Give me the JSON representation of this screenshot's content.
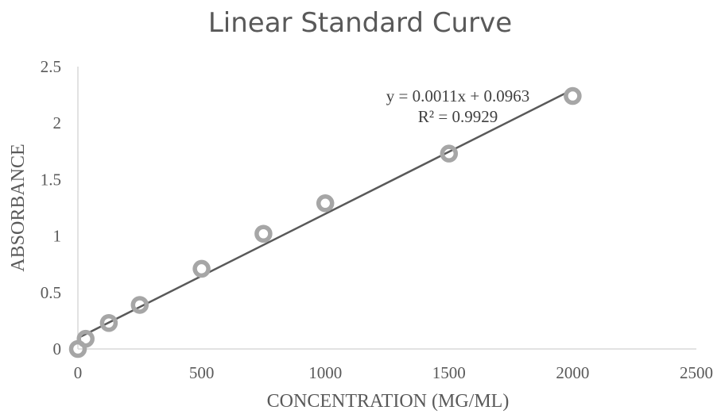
{
  "chart_data": {
    "type": "scatter",
    "title": "Linear Standard Curve",
    "xlabel": "CONCENTRATION (MG/ML)",
    "ylabel": "ABSORBANCE",
    "xlim": [
      0,
      2500
    ],
    "ylim": [
      0,
      2.5
    ],
    "x_ticks": [
      0,
      500,
      1000,
      1500,
      2000,
      2500
    ],
    "y_ticks": [
      0,
      0.5,
      1,
      1.5,
      2,
      2.5
    ],
    "x_tick_labels": [
      "0",
      "500",
      "1000",
      "1500",
      "2000",
      "2500"
    ],
    "y_tick_labels": [
      "0",
      "0.5",
      "1",
      "1.5",
      "2",
      "2.5"
    ],
    "grid": false,
    "legend": "none",
    "points": [
      {
        "x": 0,
        "y": 0.0
      },
      {
        "x": 31.25,
        "y": 0.09
      },
      {
        "x": 125,
        "y": 0.23
      },
      {
        "x": 250,
        "y": 0.39
      },
      {
        "x": 500,
        "y": 0.71
      },
      {
        "x": 750,
        "y": 1.02
      },
      {
        "x": 1000,
        "y": 1.29
      },
      {
        "x": 1500,
        "y": 1.73
      },
      {
        "x": 2000,
        "y": 2.24
      }
    ],
    "trendline": {
      "type": "linear",
      "slope": 0.0011,
      "intercept": 0.0963,
      "x_range": [
        0,
        2000
      ],
      "equation_label": "y = 0.0011x + 0.0963",
      "r2_label": "R² = 0.9929"
    },
    "colors": {
      "marker": "#a6a6a6",
      "trendline": "#595959",
      "axis": "#d9d9d9",
      "text": "#595959"
    }
  }
}
